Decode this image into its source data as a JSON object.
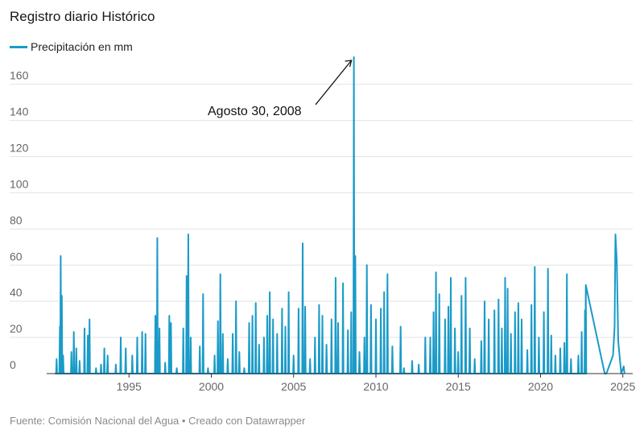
{
  "colors": {
    "series": "#1a9bc8",
    "grid": "#e3e3e3",
    "axis": "#333333"
  },
  "chart_data": {
    "type": "line",
    "title": "Registro diario Histórico",
    "legend": {
      "placement": "top-left"
    },
    "grid": true,
    "x_unit": "year",
    "xlim": [
      1990.0,
      2025.6
    ],
    "ylim": [
      0,
      175
    ],
    "x_ticks": [
      1995,
      2000,
      2005,
      2010,
      2015,
      2020,
      2025
    ],
    "x_tick_labels": [
      "1995",
      "2000",
      "2005",
      "2010",
      "2015",
      "2020",
      "2025"
    ],
    "y_ticks": [
      0,
      20,
      40,
      60,
      80,
      100,
      120,
      140,
      160
    ],
    "y_tick_labels": [
      "0",
      "20",
      "40",
      "60",
      "80",
      "100",
      "120",
      "140",
      "160"
    ],
    "series": [
      {
        "name": "Precipitación en mm",
        "peaks": [
          [
            1990.6,
            8
          ],
          [
            1990.8,
            26
          ],
          [
            1990.85,
            65
          ],
          [
            1990.92,
            43
          ],
          [
            1991.0,
            10
          ],
          [
            1991.5,
            12
          ],
          [
            1991.65,
            23
          ],
          [
            1991.8,
            14
          ],
          [
            1992.0,
            7
          ],
          [
            1992.3,
            25
          ],
          [
            1992.5,
            21
          ],
          [
            1992.6,
            30
          ],
          [
            1993.0,
            3
          ],
          [
            1993.3,
            5
          ],
          [
            1993.5,
            14
          ],
          [
            1993.7,
            10
          ],
          [
            1994.2,
            5
          ],
          [
            1994.5,
            20
          ],
          [
            1994.8,
            14
          ],
          [
            1995.2,
            10
          ],
          [
            1995.5,
            20
          ],
          [
            1995.8,
            23
          ],
          [
            1996.0,
            22
          ],
          [
            1996.6,
            32
          ],
          [
            1996.72,
            75
          ],
          [
            1996.85,
            25
          ],
          [
            1997.2,
            6
          ],
          [
            1997.45,
            32
          ],
          [
            1997.55,
            28
          ],
          [
            1997.9,
            3
          ],
          [
            1998.3,
            25
          ],
          [
            1998.5,
            54
          ],
          [
            1998.6,
            77
          ],
          [
            1998.75,
            20
          ],
          [
            1999.3,
            15
          ],
          [
            1999.5,
            44
          ],
          [
            1999.8,
            3
          ],
          [
            2000.2,
            10
          ],
          [
            2000.4,
            29
          ],
          [
            2000.55,
            55
          ],
          [
            2000.7,
            22
          ],
          [
            2001.0,
            8
          ],
          [
            2001.3,
            22
          ],
          [
            2001.5,
            40
          ],
          [
            2001.7,
            12
          ],
          [
            2002.0,
            3
          ],
          [
            2002.3,
            28
          ],
          [
            2002.5,
            32
          ],
          [
            2002.7,
            39
          ],
          [
            2002.9,
            16
          ],
          [
            2003.2,
            20
          ],
          [
            2003.4,
            32
          ],
          [
            2003.55,
            45
          ],
          [
            2003.75,
            30
          ],
          [
            2004.0,
            22
          ],
          [
            2004.3,
            36
          ],
          [
            2004.5,
            26
          ],
          [
            2004.7,
            45
          ],
          [
            2005.0,
            10
          ],
          [
            2005.3,
            36
          ],
          [
            2005.55,
            72
          ],
          [
            2005.7,
            37
          ],
          [
            2006.0,
            8
          ],
          [
            2006.3,
            20
          ],
          [
            2006.55,
            38
          ],
          [
            2006.75,
            32
          ],
          [
            2007.0,
            16
          ],
          [
            2007.3,
            30
          ],
          [
            2007.55,
            53
          ],
          [
            2007.7,
            28
          ],
          [
            2008.0,
            50
          ],
          [
            2008.3,
            24
          ],
          [
            2008.5,
            34
          ],
          [
            2008.66,
            175
          ],
          [
            2008.75,
            65
          ],
          [
            2009.0,
            12
          ],
          [
            2009.3,
            20
          ],
          [
            2009.45,
            60
          ],
          [
            2009.7,
            38
          ],
          [
            2010.0,
            30
          ],
          [
            2010.3,
            36
          ],
          [
            2010.5,
            45
          ],
          [
            2010.7,
            55
          ],
          [
            2011.0,
            15
          ],
          [
            2011.5,
            26
          ],
          [
            2011.7,
            3
          ],
          [
            2012.2,
            7
          ],
          [
            2012.6,
            5
          ],
          [
            2013.0,
            20
          ],
          [
            2013.3,
            20
          ],
          [
            2013.5,
            34
          ],
          [
            2013.65,
            56
          ],
          [
            2013.85,
            44
          ],
          [
            2014.2,
            30
          ],
          [
            2014.4,
            37
          ],
          [
            2014.55,
            53
          ],
          [
            2014.8,
            25
          ],
          [
            2015.0,
            12
          ],
          [
            2015.2,
            43
          ],
          [
            2015.45,
            53
          ],
          [
            2015.7,
            25
          ],
          [
            2016.0,
            8
          ],
          [
            2016.4,
            18
          ],
          [
            2016.6,
            40
          ],
          [
            2016.85,
            30
          ],
          [
            2017.2,
            35
          ],
          [
            2017.45,
            41
          ],
          [
            2017.65,
            25
          ],
          [
            2017.85,
            53
          ],
          [
            2018.0,
            47
          ],
          [
            2018.2,
            22
          ],
          [
            2018.45,
            34
          ],
          [
            2018.65,
            39
          ],
          [
            2018.85,
            30
          ],
          [
            2019.2,
            13
          ],
          [
            2019.45,
            38
          ],
          [
            2019.65,
            59
          ],
          [
            2019.9,
            20
          ],
          [
            2020.2,
            34
          ],
          [
            2020.45,
            58
          ],
          [
            2020.65,
            21
          ],
          [
            2020.9,
            10
          ],
          [
            2021.2,
            14
          ],
          [
            2021.45,
            17
          ],
          [
            2021.6,
            55
          ],
          [
            2021.85,
            8
          ],
          [
            2022.3,
            10
          ],
          [
            2022.5,
            23
          ],
          [
            2022.7,
            35
          ],
          [
            2022.75,
            49
          ]
        ],
        "trail": [
          [
            2022.75,
            49
          ],
          [
            2023.9,
            0
          ],
          [
            2024.0,
            0
          ],
          [
            2024.4,
            10
          ],
          [
            2024.5,
            26
          ],
          [
            2024.55,
            77
          ],
          [
            2024.63,
            62
          ],
          [
            2024.72,
            18
          ],
          [
            2024.9,
            0
          ],
          [
            2025.05,
            4
          ],
          [
            2025.1,
            0
          ]
        ]
      }
    ],
    "annotations": [
      {
        "text": "Agosto 30, 2008",
        "x": 2008.66,
        "y": 175
      }
    ],
    "source": "Fuente: Comisión Nacional del Agua • Creado con Datawrapper"
  }
}
